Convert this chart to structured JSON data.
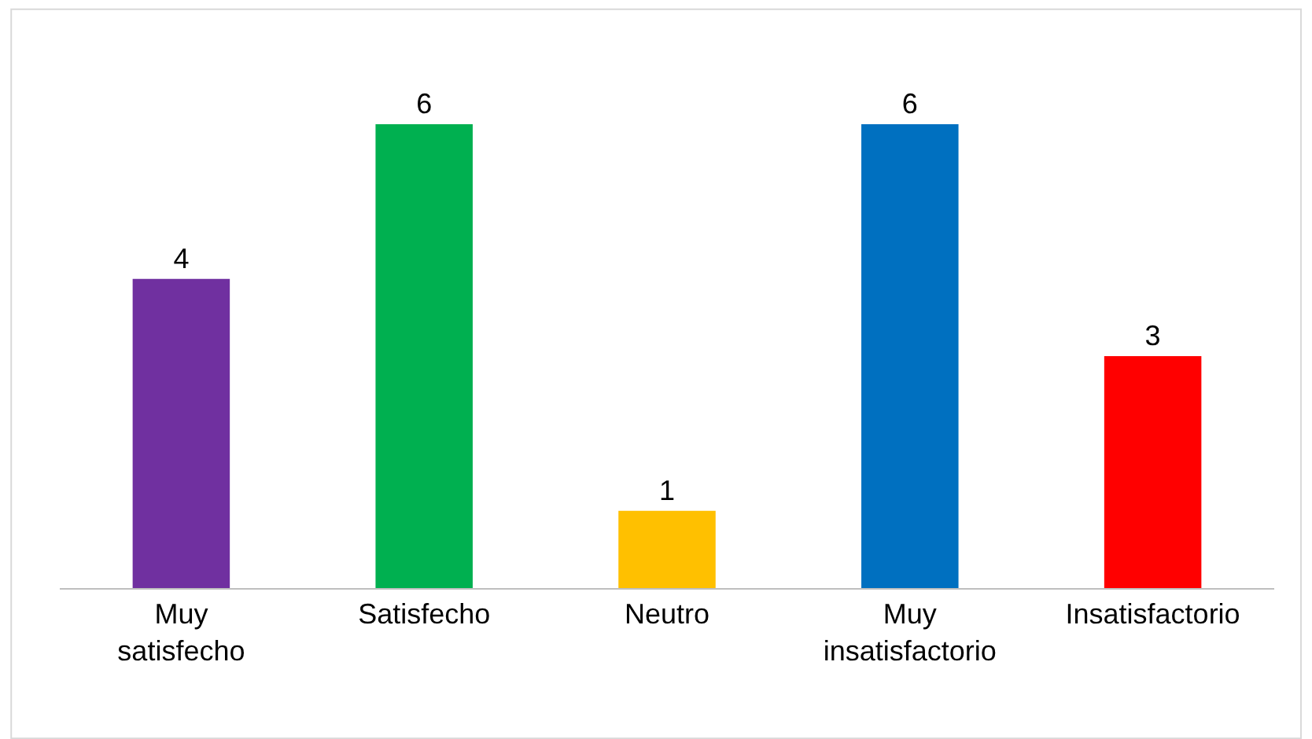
{
  "chart_data": {
    "type": "bar",
    "categories": [
      "Muy satisfecho",
      "Satisfecho",
      "Neutro",
      "Muy insatisfactorio",
      "Insatisfactorio"
    ],
    "values": [
      4,
      6,
      1,
      6,
      3
    ],
    "colors": [
      "#7030a0",
      "#00b050",
      "#ffc000",
      "#0070c0",
      "#ff0000"
    ],
    "data_labels": true
  }
}
